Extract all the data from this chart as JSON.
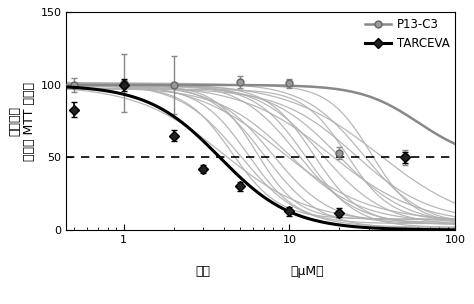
{
  "ylabel_line1": "细胞活性",
  "ylabel_line2": "（基于 MTT 实验）",
  "xlabel": "浓度",
  "xlabel2": "（μM）",
  "ylim": [
    0,
    150
  ],
  "xlim": [
    0.45,
    100
  ],
  "yticks": [
    0,
    50,
    100,
    150
  ],
  "dashed_y": 50,
  "gray_bg_color": "#b0b0b0",
  "p13c3_color": "#888888",
  "tarceva_color": "#000000",
  "background_color": "#ffffff",
  "p13c3_x": [
    0.5,
    1.0,
    2.0,
    5.0,
    10.0,
    20.0,
    50.0
  ],
  "p13c3_y": [
    100,
    101,
    100,
    102,
    101,
    53,
    50
  ],
  "p13c3_err": [
    5,
    20,
    20,
    4,
    3,
    4,
    5
  ],
  "tarceva_x": [
    0.5,
    1.0,
    2.0,
    3.0,
    5.0,
    10.0,
    20.0,
    50.0
  ],
  "tarceva_y": [
    83,
    100,
    65,
    42,
    30,
    13,
    12,
    50
  ],
  "tarceva_err": [
    5,
    4,
    4,
    3,
    3,
    3,
    3,
    4
  ],
  "n_gray_curves": 20,
  "legend_loc": "upper right"
}
